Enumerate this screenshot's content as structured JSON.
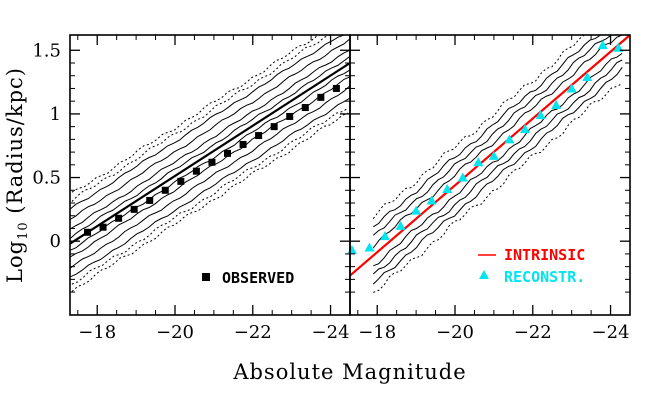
{
  "chart_data": [
    {
      "panel": "left",
      "type": "scatter",
      "xlabel": "Absolute Magnitude",
      "ylabel_main": "Log",
      "ylabel_sub": "10",
      "ylabel_rest": " (Radius/kpc)",
      "xlim": [
        -17.3,
        -24.5
      ],
      "ylim": [
        -0.58,
        1.62
      ],
      "xticks": [
        -18,
        -20,
        -22,
        -24
      ],
      "xtick_labels": [
        "−18",
        "−20",
        "−22",
        "−24"
      ],
      "yticks": [
        0,
        0.5,
        1,
        1.5
      ],
      "ytick_labels": [
        "0",
        "0.5",
        "1",
        "1.5"
      ],
      "series": [
        {
          "name": "OBSERVED",
          "marker": "square",
          "color": "#000000",
          "x": [
            -17.75,
            -18.15,
            -18.55,
            -18.95,
            -19.35,
            -19.75,
            -20.15,
            -20.55,
            -20.95,
            -21.35,
            -21.75,
            -22.15,
            -22.55,
            -22.95,
            -23.35,
            -23.75,
            -24.15
          ],
          "y": [
            0.07,
            0.11,
            0.18,
            0.25,
            0.32,
            0.4,
            0.47,
            0.55,
            0.62,
            0.69,
            0.76,
            0.83,
            0.9,
            0.98,
            1.05,
            1.13,
            1.2
          ]
        },
        {
          "name": "fit",
          "type": "line",
          "color": "#000000",
          "x": [
            -17.3,
            -24.5
          ],
          "y": [
            -0.02,
            1.4
          ]
        }
      ],
      "contours": "density contours (solid) with outer dotted envelopes along the relation"
    },
    {
      "panel": "right",
      "type": "scatter",
      "xlim": [
        -17.3,
        -24.5
      ],
      "ylim": [
        -0.58,
        1.62
      ],
      "xticks": [
        -18,
        -20,
        -22,
        -24
      ],
      "xtick_labels": [
        "−18",
        "−20",
        "−22",
        "−24"
      ],
      "series": [
        {
          "name": "INTRINSIC",
          "type": "line",
          "color": "#ff0000",
          "x": [
            -17.3,
            -24.5
          ],
          "y": [
            -0.27,
            1.62
          ]
        },
        {
          "name": "RECONSTR.",
          "marker": "triangle",
          "color": "#00e5ee",
          "x": [
            -17.35,
            -17.8,
            -18.2,
            -18.6,
            -19.0,
            -19.4,
            -19.8,
            -20.2,
            -20.6,
            -21.0,
            -21.4,
            -21.8,
            -22.2,
            -22.6,
            -23.0,
            -23.4,
            -23.8,
            -24.2
          ],
          "y": [
            -0.07,
            -0.05,
            0.04,
            0.12,
            0.24,
            0.32,
            0.41,
            0.5,
            0.62,
            0.67,
            0.8,
            0.88,
            0.99,
            1.07,
            1.2,
            1.29,
            1.54,
            1.52
          ]
        }
      ],
      "contours": "reconstructed density contours (solid) with outer dotted envelopes"
    }
  ]
}
